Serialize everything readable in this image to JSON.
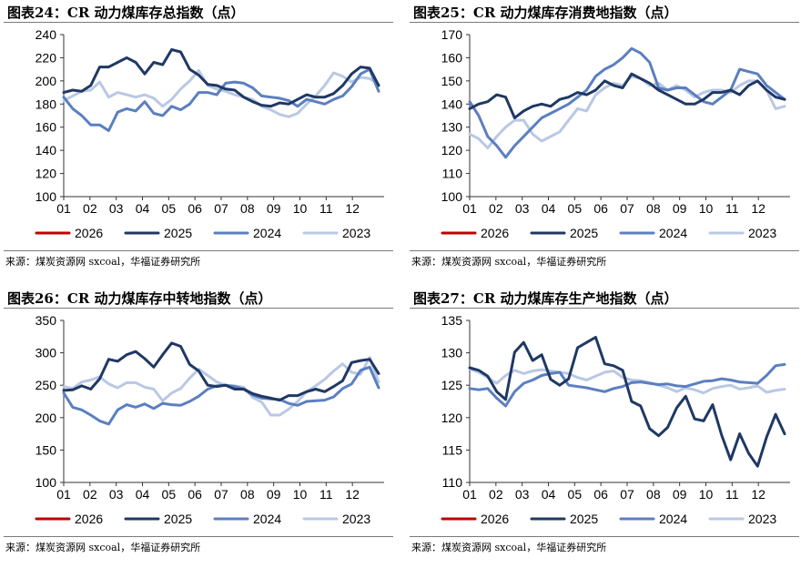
{
  "colors": {
    "2026": "#c00000",
    "2025": "#1f3864",
    "2024": "#5b7fc0",
    "2023": "#b9c8e4"
  },
  "panels": [
    {
      "title": "图表24：CR 动力煤库存总指数（点）",
      "source": "来源：煤炭资源网 sxcoal，华福证券研究所",
      "chart_data": {
        "type": "line",
        "x_ticks": [
          "01",
          "02",
          "03",
          "04",
          "05",
          "06",
          "07",
          "08",
          "09",
          "10",
          "11",
          "12"
        ],
        "ylim": [
          100,
          240
        ],
        "y_ticks": [
          100,
          120,
          140,
          160,
          180,
          200,
          220,
          240
        ],
        "grid": false,
        "legend_position": "bottom",
        "series": [
          {
            "name": "2026",
            "values": []
          },
          {
            "name": "2025",
            "values": [
              190,
              192,
              191,
              196,
              212,
              212,
              216,
              220,
              216,
              206,
              216,
              214,
              227,
              225,
              210,
              205,
              197,
              196,
              193,
              192,
              186,
              182,
              179,
              178,
              181,
              180,
              184,
              188,
              186,
              186,
              189,
              196,
              206,
              212,
              211,
              196
            ]
          },
          {
            "name": "2024",
            "values": [
              186,
              176,
              170,
              162,
              162,
              157,
              173,
              176,
              174,
              182,
              172,
              170,
              178,
              175,
              180,
              190,
              190,
              188,
              198,
              199,
              198,
              194,
              187,
              186,
              185,
              183,
              178,
              184,
              182,
              180,
              184,
              187,
              195,
              206,
              210,
              191
            ]
          },
          {
            "name": "2023",
            "values": [
              183,
              187,
              191,
              192,
              199,
              186,
              190,
              188,
              186,
              188,
              185,
              178,
              184,
              193,
              200,
              209,
              196,
              193,
              191,
              188,
              186,
              184,
              178,
              175,
              171,
              169,
              172,
              180,
              187,
              196,
              207,
              204,
              199,
              203,
              202,
              197
            ]
          }
        ]
      }
    },
    {
      "title": "图表25：CR 动力煤库存消费地指数（点）",
      "source": "来源：煤炭资源网 sxcoal，华福证券研究所",
      "chart_data": {
        "type": "line",
        "x_ticks": [
          "01",
          "02",
          "03",
          "04",
          "05",
          "06",
          "07",
          "08",
          "09",
          "10",
          "11",
          "12"
        ],
        "ylim": [
          100,
          170
        ],
        "y_ticks": [
          100,
          110,
          120,
          130,
          140,
          150,
          160,
          170
        ],
        "grid": false,
        "legend_position": "bottom",
        "series": [
          {
            "name": "2026",
            "values": []
          },
          {
            "name": "2025",
            "values": [
              138,
              140,
              141,
              144,
              143,
              134,
              137,
              139,
              140,
              139,
              142,
              143,
              145,
              144,
              146,
              150,
              148,
              147,
              153,
              151,
              149,
              146,
              144,
              142,
              140,
              140,
              142,
              145,
              145,
              146,
              144,
              148,
              150,
              146,
              143,
              142
            ]
          },
          {
            "name": "2024",
            "values": [
              141,
              135,
              126,
              122,
              117,
              122,
              126,
              130,
              134,
              136,
              138,
              140,
              143,
              146,
              152,
              155,
              157,
              160,
              164,
              162,
              158,
              147,
              146,
              147,
              147,
              144,
              141,
              140,
              143,
              146,
              155,
              154,
              153,
              148,
              145,
              142
            ]
          },
          {
            "name": "2023",
            "values": [
              127,
              125,
              121,
              126,
              130,
              133,
              133,
              127,
              124,
              126,
              128,
              133,
              138,
              137,
              144,
              147,
              149,
              148,
              152,
              151,
              148,
              149,
              146,
              148,
              146,
              143,
              145,
              146,
              146,
              145,
              148,
              150,
              150,
              146,
              138,
              139
            ]
          }
        ]
      }
    },
    {
      "title": "图表26：CR 动力煤库存中转地指数（点）",
      "source": "来源：煤炭资源网 sxcoal，华福证券研究所",
      "chart_data": {
        "type": "line",
        "x_ticks": [
          "01",
          "02",
          "03",
          "04",
          "05",
          "06",
          "07",
          "08",
          "09",
          "10",
          "11",
          "12"
        ],
        "ylim": [
          100,
          350
        ],
        "y_ticks": [
          100,
          150,
          200,
          250,
          300,
          350
        ],
        "grid": false,
        "legend_position": "bottom",
        "series": [
          {
            "name": "2026",
            "values": []
          },
          {
            "name": "2025",
            "values": [
              242,
              243,
              249,
              244,
              260,
              290,
              287,
              297,
              302,
              291,
              278,
              297,
              315,
              310,
              282,
              272,
              250,
              248,
              250,
              244,
              244,
              237,
              233,
              230,
              227,
              234,
              234,
              240,
              244,
              240,
              248,
              257,
              285,
              288,
              290,
              268
            ]
          },
          {
            "name": "2024",
            "values": [
              238,
              216,
              212,
              204,
              195,
              190,
              212,
              220,
              216,
              221,
              214,
              222,
              220,
              219,
              225,
              233,
              244,
              249,
              250,
              248,
              244,
              235,
              230,
              229,
              228,
              222,
              219,
              225,
              226,
              227,
              232,
              245,
              252,
              273,
              278,
              246
            ]
          },
          {
            "name": "2023",
            "values": [
              248,
              245,
              255,
              258,
              263,
              252,
              246,
              254,
              254,
              247,
              244,
              226,
              238,
              245,
              261,
              275,
              265,
              255,
              250,
              249,
              247,
              231,
              224,
              204,
              204,
              213,
              225,
              240,
              249,
              259,
              272,
              283,
              270,
              267,
              293,
              255
            ]
          }
        ]
      }
    },
    {
      "title": "图表27：CR 动力煤库存生产地指数（点）",
      "source": "来源：煤炭资源网 sxcoal，华福证券研究所",
      "chart_data": {
        "type": "line",
        "x_ticks": [
          "01",
          "02",
          "03",
          "04",
          "05",
          "06",
          "07",
          "08",
          "09",
          "10",
          "11",
          "12"
        ],
        "ylim": [
          110,
          135
        ],
        "y_ticks": [
          110,
          115,
          120,
          125,
          130,
          135
        ],
        "grid": false,
        "legend_position": "bottom",
        "series": [
          {
            "name": "2026",
            "values": []
          },
          {
            "name": "2025",
            "values": [
              127.7,
              127.3,
              126.4,
              124.0,
              122.8,
              130.1,
              131.6,
              128.8,
              129.7,
              125.9,
              125.0,
              126.0,
              130.8,
              131.6,
              132.4,
              128.3,
              128.0,
              127.3,
              122.5,
              121.8,
              118.3,
              117.2,
              118.5,
              121.5,
              123.3,
              119.8,
              119.5,
              122.0,
              117.3,
              113.5,
              117.5,
              114.5,
              112.5,
              117.0,
              120.5,
              117.5
            ]
          },
          {
            "name": "2024",
            "values": [
              124.5,
              124.3,
              124.5,
              123.0,
              121.8,
              124.0,
              125.3,
              125.8,
              126.5,
              126.8,
              127.0,
              125.0,
              124.8,
              124.6,
              124.3,
              124.0,
              124.5,
              124.8,
              125.4,
              125.5,
              125.3,
              125.1,
              125.2,
              124.9,
              124.8,
              125.2,
              125.6,
              125.7,
              126.0,
              125.8,
              125.5,
              125.4,
              125.3,
              126.5,
              128.0,
              128.2
            ]
          },
          {
            "name": "2023",
            "values": [
              127.5,
              127.0,
              126.2,
              125.3,
              126.5,
              127.3,
              126.8,
              127.2,
              127.4,
              127.2,
              127.0,
              126.8,
              126.2,
              125.8,
              126.4,
              127.0,
              127.2,
              126.2,
              125.8,
              125.7,
              125.4,
              125.0,
              124.6,
              124.0,
              124.6,
              124.3,
              123.8,
              124.5,
              124.8,
              125.0,
              124.4,
              124.6,
              124.9,
              123.9,
              124.2,
              124.4
            ]
          }
        ]
      }
    }
  ]
}
